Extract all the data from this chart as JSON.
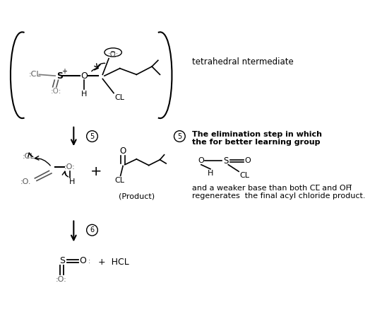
{
  "background_color": "#ffffff",
  "fig_width": 5.41,
  "fig_height": 4.48,
  "dpi": 100,
  "text_label": "tetrahedral ntermediate",
  "elim_line1": "The elimination step in which",
  "elim_line2": "the for better learning group",
  "weaker_line1": "and a weaker base than both CL̅ and OH̅",
  "weaker_line2": "regenerates  the final acyl chloride product."
}
